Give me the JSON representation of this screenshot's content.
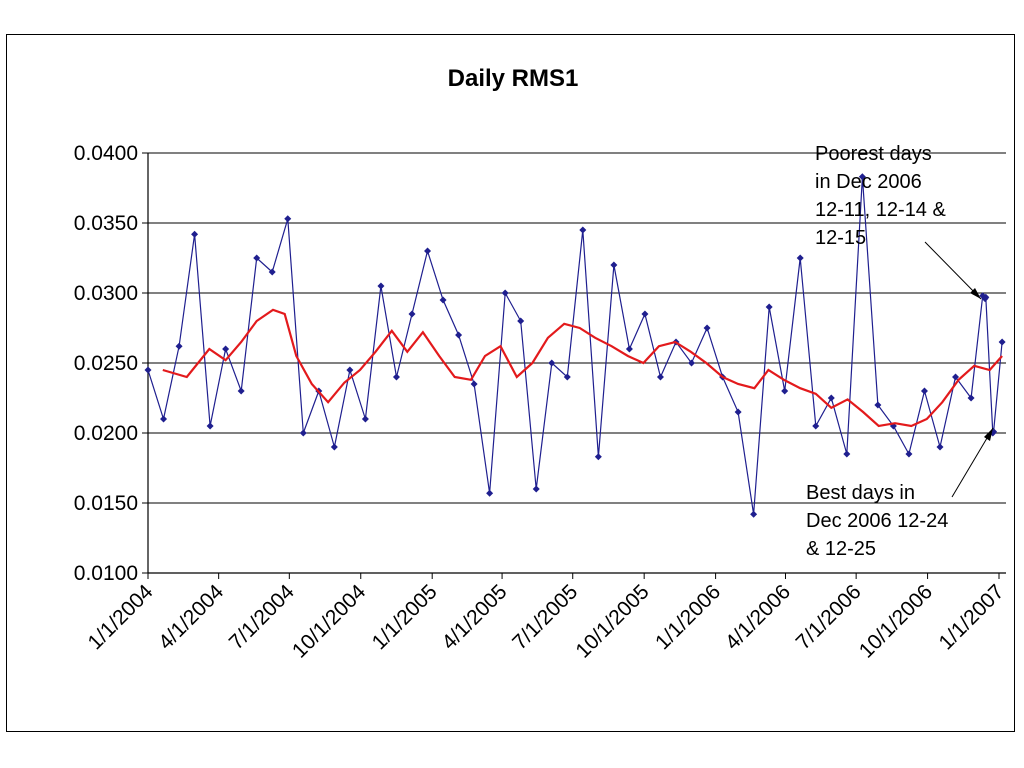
{
  "chart_data": {
    "type": "line",
    "title": "Daily RMS1",
    "xlabel": "",
    "ylabel": "",
    "ylim": [
      0.01,
      0.04
    ],
    "xlim": [
      "2004-01-01",
      "2007-01-10"
    ],
    "y_ticks": [
      "0.0100",
      "0.0150",
      "0.0200",
      "0.0250",
      "0.0300",
      "0.0350",
      "0.0400"
    ],
    "x_ticks": [
      "1/1/2004",
      "4/1/2004",
      "7/1/2004",
      "10/1/2004",
      "1/1/2005",
      "4/1/2005",
      "7/1/2005",
      "10/1/2005",
      "1/1/2006",
      "4/1/2006",
      "7/1/2006",
      "10/1/2006",
      "1/1/2007"
    ],
    "grid": "horizontal",
    "series": [
      {
        "color": "#1f1f8f",
        "marker": "diamond",
        "x": [
          "2004-01-01",
          "2004-01-21",
          "2004-02-10",
          "2004-03-01",
          "2004-03-21",
          "2004-04-10",
          "2004-04-30",
          "2004-05-20",
          "2004-06-09",
          "2004-06-29",
          "2004-07-19",
          "2004-08-08",
          "2004-08-28",
          "2004-09-17",
          "2004-10-07",
          "2004-10-27",
          "2004-11-16",
          "2004-12-06",
          "2004-12-26",
          "2005-01-15",
          "2005-02-04",
          "2005-02-24",
          "2005-03-16",
          "2005-04-05",
          "2005-04-25",
          "2005-05-15",
          "2005-06-04",
          "2005-06-24",
          "2005-07-14",
          "2005-08-03",
          "2005-08-23",
          "2005-09-12",
          "2005-10-02",
          "2005-10-22",
          "2005-11-11",
          "2005-12-01",
          "2005-12-21",
          "2006-01-10",
          "2006-01-30",
          "2006-02-19",
          "2006-03-11",
          "2006-03-31",
          "2006-04-20",
          "2006-05-10",
          "2006-05-30",
          "2006-06-19",
          "2006-07-09",
          "2006-07-29",
          "2006-08-18",
          "2006-09-07",
          "2006-09-27",
          "2006-10-17",
          "2006-11-06",
          "2006-11-26",
          "2006-12-11",
          "2006-12-14",
          "2006-12-15",
          "2006-12-24",
          "2006-12-25",
          "2007-01-05"
        ],
        "values": [
          0.0245,
          0.021,
          0.0262,
          0.0342,
          0.0205,
          0.026,
          0.023,
          0.0325,
          0.0315,
          0.0353,
          0.02,
          0.023,
          0.019,
          0.0245,
          0.021,
          0.0305,
          0.024,
          0.0285,
          0.033,
          0.0295,
          0.027,
          0.0235,
          0.0157,
          0.03,
          0.028,
          0.016,
          0.025,
          0.024,
          0.0345,
          0.0183,
          0.032,
          0.026,
          0.0285,
          0.024,
          0.0265,
          0.025,
          0.0275,
          0.024,
          0.0215,
          0.0142,
          0.029,
          0.023,
          0.0325,
          0.0205,
          0.0225,
          0.0185,
          0.0383,
          0.022,
          0.0205,
          0.0185,
          0.023,
          0.019,
          0.024,
          0.0225,
          0.0298,
          0.0296,
          0.0297,
          0.02,
          0.0201,
          0.0265
        ]
      },
      {
        "color": "#e31a1c",
        "marker": "none",
        "x": [
          "2004-01-20",
          "2004-02-20",
          "2004-03-20",
          "2004-04-10",
          "2004-04-30",
          "2004-05-20",
          "2004-06-10",
          "2004-06-25",
          "2004-07-10",
          "2004-07-30",
          "2004-08-20",
          "2004-09-10",
          "2004-09-30",
          "2004-10-20",
          "2004-11-10",
          "2004-11-30",
          "2004-12-20",
          "2005-01-10",
          "2005-01-30",
          "2005-02-20",
          "2005-03-10",
          "2005-03-30",
          "2005-04-20",
          "2005-05-10",
          "2005-05-30",
          "2005-06-20",
          "2005-07-10",
          "2005-07-30",
          "2005-08-20",
          "2005-09-10",
          "2005-09-30",
          "2005-10-20",
          "2005-11-10",
          "2005-11-30",
          "2005-12-20",
          "2006-01-10",
          "2006-01-30",
          "2006-02-20",
          "2006-03-10",
          "2006-03-30",
          "2006-04-20",
          "2006-05-10",
          "2006-05-30",
          "2006-06-20",
          "2006-07-10",
          "2006-07-30",
          "2006-08-20",
          "2006-09-10",
          "2006-09-30",
          "2006-10-20",
          "2006-11-10",
          "2006-11-30",
          "2006-12-20",
          "2007-01-05"
        ],
        "values": [
          0.0245,
          0.024,
          0.026,
          0.0252,
          0.0265,
          0.028,
          0.0288,
          0.0285,
          0.0255,
          0.0235,
          0.0222,
          0.0236,
          0.0245,
          0.0258,
          0.0273,
          0.0258,
          0.0272,
          0.0255,
          0.024,
          0.0238,
          0.0255,
          0.0262,
          0.024,
          0.025,
          0.0268,
          0.0278,
          0.0275,
          0.0268,
          0.0262,
          0.0255,
          0.025,
          0.0262,
          0.0265,
          0.0258,
          0.025,
          0.024,
          0.0235,
          0.0232,
          0.0245,
          0.0238,
          0.0232,
          0.0228,
          0.0218,
          0.0224,
          0.0215,
          0.0205,
          0.0207,
          0.0205,
          0.021,
          0.0222,
          0.0238,
          0.0248,
          0.0245,
          0.0255
        ]
      }
    ],
    "annotations": [
      {
        "lines": [
          "Poorest days",
          "in Dec 2006",
          "12-11, 12-14 &",
          "12-15"
        ]
      },
      {
        "lines": [
          "Best days in",
          "Dec 2006 12-24",
          "& 12-25"
        ]
      }
    ]
  }
}
